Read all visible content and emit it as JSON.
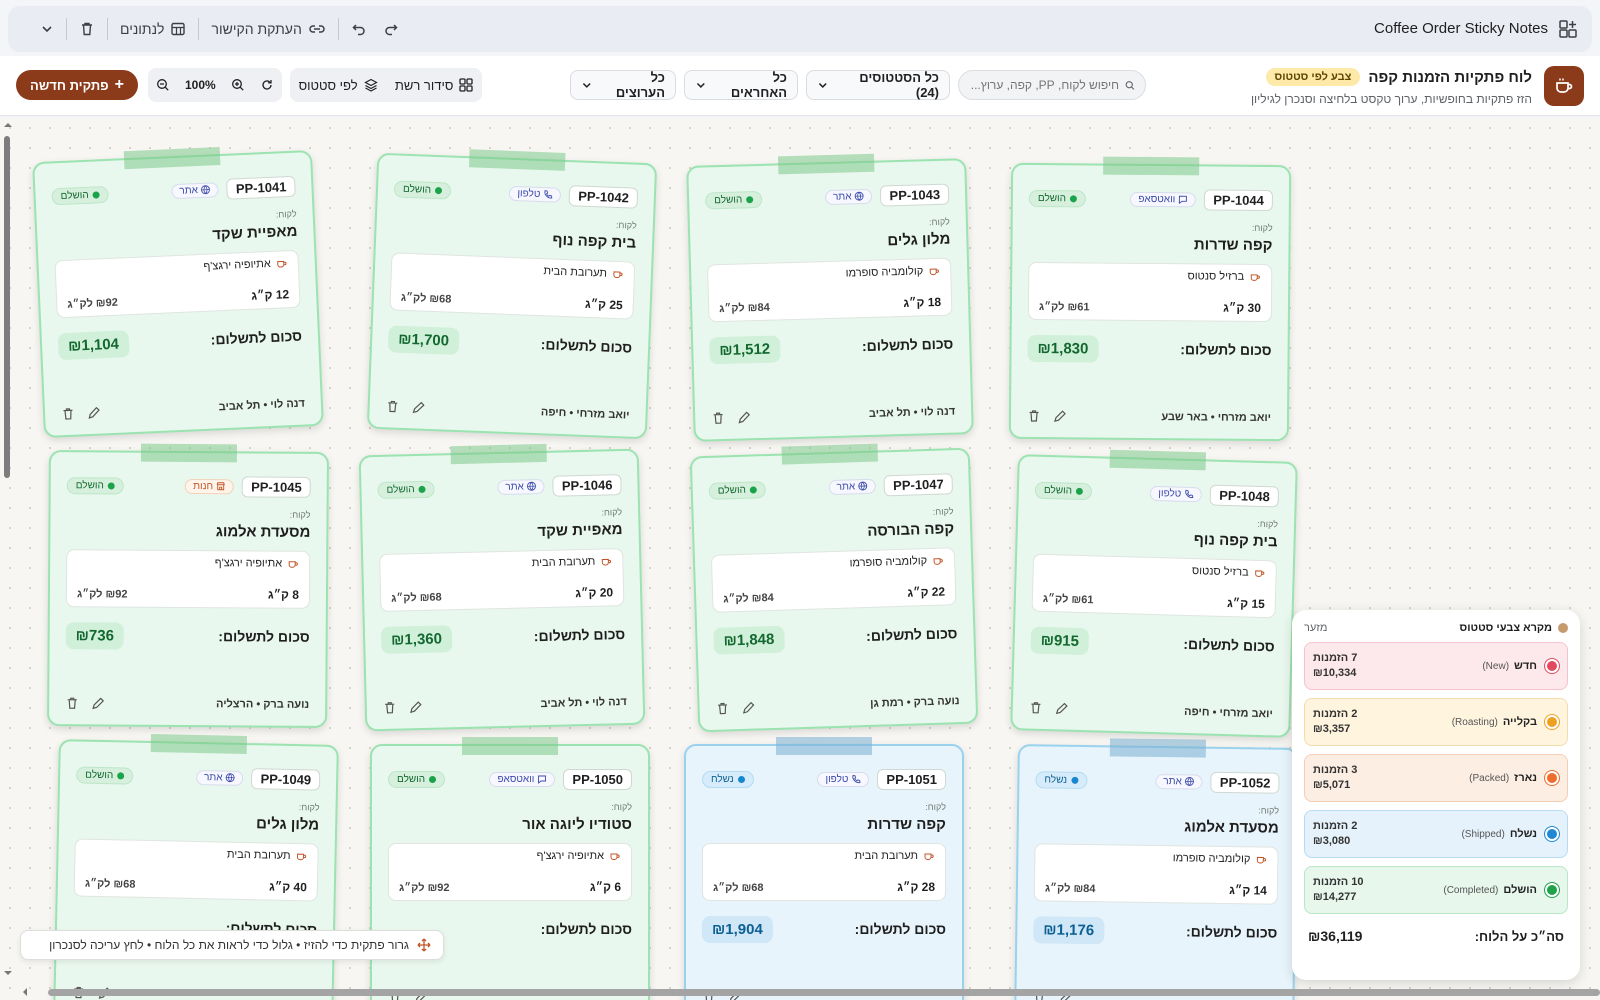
{
  "titlebar": {
    "title": "Coffee Order Sticky Notes",
    "copy_link": "העתקת הקישור",
    "to_data": "לנתונים"
  },
  "header": {
    "title": "לוח פתקיות הזמנות קפה",
    "badge": "צבע לפי סטטוס",
    "subtitle": "הזז פתקיות בחופשיות, ערוך טקסט בלחיצה וסנכרן לגיליון",
    "search_placeholder": "חיפוש לקוח, PP, קפה, ערוץ...",
    "filter_status": "כל הסטטוסים (24)",
    "filter_reps": "כל האחראים",
    "filter_channels": "כל הערוצים",
    "grid_layout": "סידור רשת",
    "by_status": "לפי סטטוס",
    "zoom": "100%",
    "new_note": "פתקית חדשה"
  },
  "labels": {
    "customer": "לקוח:",
    "total": "סכום לתשלום:"
  },
  "notes": [
    {
      "id": "PP-1041",
      "channel": "אתר",
      "status": "הושלם",
      "customer": "מאפיית שקד",
      "item": "אתיופיה ירגצ'ף",
      "qty": "12 ק״ג",
      "price": "₪92 לק״ג",
      "total": "₪1,104",
      "rep": "דנה לוי • תל אביב"
    },
    {
      "id": "PP-1042",
      "channel": "טלפון",
      "status": "הושלם",
      "customer": "בית קפה נוף",
      "item": "תערובת הבית",
      "qty": "25 ק״ג",
      "price": "₪68 לק״ג",
      "total": "₪1,700",
      "rep": "יואב מזרחי • חיפה"
    },
    {
      "id": "PP-1043",
      "channel": "אתר",
      "status": "הושלם",
      "customer": "מלון גלים",
      "item": "קולומביה סופרמו",
      "qty": "18 ק״ג",
      "price": "₪84 לק״ג",
      "total": "₪1,512",
      "rep": "דנה לוי • תל אביב"
    },
    {
      "id": "PP-1044",
      "channel": "וואטסאפ",
      "status": "הושלם",
      "customer": "קפה שדרות",
      "item": "ברזיל סנטוס",
      "qty": "30 ק״ג",
      "price": "₪61 לק״ג",
      "total": "₪1,830",
      "rep": "יואב מזרחי • באר שבע"
    },
    {
      "id": "PP-1045",
      "channel": "חנות",
      "status": "הושלם",
      "customer": "מסעדת אלמוג",
      "item": "אתיופיה ירגצ'ף",
      "qty": "8 ק״ג",
      "price": "₪92 לק״ג",
      "total": "₪736",
      "rep": "נועה ברק • הרצליה"
    },
    {
      "id": "PP-1046",
      "channel": "אתר",
      "status": "הושלם",
      "customer": "מאפיית שקד",
      "item": "תערובת הבית",
      "qty": "20 ק״ג",
      "price": "₪68 לק״ג",
      "total": "₪1,360",
      "rep": "דנה לוי • תל אביב"
    },
    {
      "id": "PP-1047",
      "channel": "אתר",
      "status": "הושלם",
      "customer": "קפה הבורסה",
      "item": "קולומביה סופרמו",
      "qty": "22 ק״ג",
      "price": "₪84 לק״ג",
      "total": "₪1,848",
      "rep": "נועה ברק • רמת גן"
    },
    {
      "id": "PP-1048",
      "channel": "טלפון",
      "status": "הושלם",
      "customer": "בית קפה נוף",
      "item": "ברזיל סנטוס",
      "qty": "15 ק״ג",
      "price": "₪61 לק״ג",
      "total": "₪915",
      "rep": "יואב מזרחי • חיפה"
    },
    {
      "id": "PP-1049",
      "channel": "אתר",
      "status": "הושלם",
      "customer": "מלון גלים",
      "item": "תערובת הבית",
      "qty": "40 ק״ג",
      "price": "₪68 לק״ג",
      "total": "",
      "rep": ""
    },
    {
      "id": "PP-1050",
      "channel": "וואטסאפ",
      "status": "הושלם",
      "customer": "סטודיו ליוגה אור",
      "item": "אתיופיה ירגצ'ף",
      "qty": "6 ק״ג",
      "price": "₪92 לק״ג",
      "total": "",
      "rep": ""
    },
    {
      "id": "PP-1051",
      "channel": "טלפון",
      "status": "נשלח",
      "customer": "קפה שדרות",
      "item": "תערובת הבית",
      "qty": "28 ק״ג",
      "price": "₪68 לק״ג",
      "total": "₪1,904",
      "rep": ""
    },
    {
      "id": "PP-1052",
      "channel": "אתר",
      "status": "נשלח",
      "customer": "מסעדת אלמוג",
      "item": "קולומביה סופרמו",
      "qty": "14 ק״ג",
      "price": "₪84 לק״ג",
      "total": "₪1,176",
      "rep": ""
    }
  ],
  "hint": "גרור פתקית כדי להזיז • גלול כדי לראות את כל הלוח • לחץ עריכה לסנכרון",
  "legend": {
    "title": "מקרא צבעי סטטוס",
    "minimize": "מזער",
    "rows": [
      {
        "name": "חדש",
        "en": "(New)",
        "count": "7 הזמנות",
        "sum": "₪10,334",
        "color": "#e2495f",
        "bg": "#fde8ec",
        "border": "#f5c3cc"
      },
      {
        "name": "בקלייה",
        "en": "(Roasting)",
        "count": "2 הזמנות",
        "sum": "₪3,357",
        "color": "#f0a020",
        "bg": "#fff5df",
        "border": "#f4dcaa"
      },
      {
        "name": "נארז",
        "en": "(Packed)",
        "count": "3 הזמנות",
        "sum": "₪5,071",
        "color": "#ef6c2c",
        "bg": "#fdeee4",
        "border": "#f5cdb4"
      },
      {
        "name": "נשלח",
        "en": "(Shipped)",
        "count": "2 הזמנות",
        "sum": "₪3,080",
        "color": "#1e88d6",
        "bg": "#e5f2fb",
        "border": "#b8dbf3"
      },
      {
        "name": "הושלם",
        "en": "(Completed)",
        "count": "10 הזמנות",
        "sum": "₪14,277",
        "color": "#1fa34a",
        "bg": "#e7f7ec",
        "border": "#b9e6c6"
      }
    ],
    "total_label": "סה״כ על הלוח:",
    "total": "₪36,119"
  }
}
